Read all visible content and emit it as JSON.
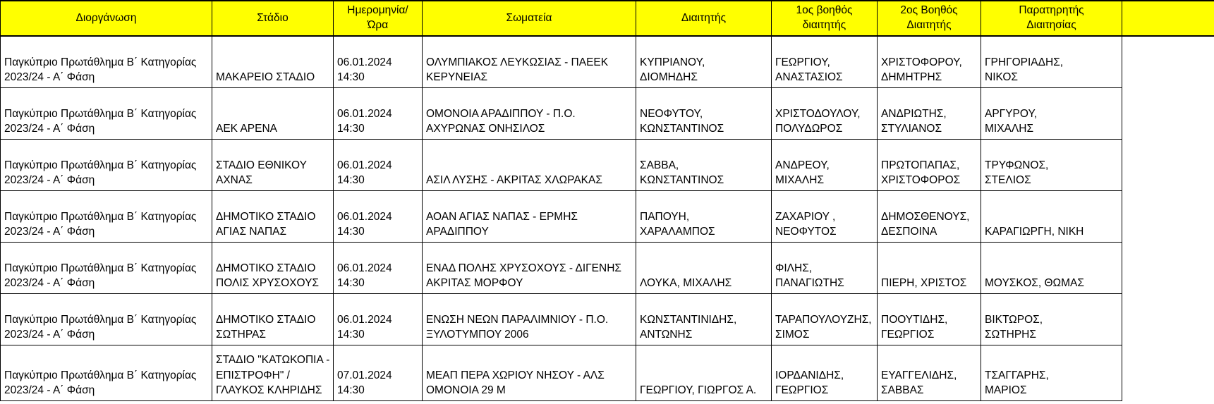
{
  "colors": {
    "header_bg": "#FFFF00",
    "border": "#000000",
    "text": "#000000",
    "page_bg": "#FFFFFF"
  },
  "table": {
    "columns": [
      {
        "key": "competition",
        "label": "Διοργάνωση"
      },
      {
        "key": "stadium",
        "label": "Στάδιο"
      },
      {
        "key": "datetime",
        "label": "Ημερομηνία/\nΏρα"
      },
      {
        "key": "teams",
        "label": "Σωματεία"
      },
      {
        "key": "referee",
        "label": "Διαιτητής"
      },
      {
        "key": "assistant1",
        "label": "1ος βοηθός\nδιαιτητής"
      },
      {
        "key": "assistant2",
        "label": "2ος Βοηθός\nΔιαιτητής"
      },
      {
        "key": "observer",
        "label": "Παρατηρητής\nΔιαιτησίας"
      }
    ],
    "rows": [
      {
        "competition": "Παγκύπριο Πρωτάθλημα Β΄ Κατηγορίας\n2023/24 - Α΄ Φάση",
        "stadium": "ΜΑΚΑΡΕΙΟ ΣΤΑΔΙΟ",
        "datetime": "06.01.2024\n14:30",
        "teams": "ΟΛΥΜΠΙΑΚΟΣ ΛΕΥΚΩΣΙΑΣ - ΠΑΕΕΚ\nΚΕΡΥΝΕΙΑΣ",
        "referee": "ΚΥΠΡΙΑΝΟΥ,\nΔΙΟΜΗΔΗΣ",
        "assistant1": "ΓΕΩΡΓΙΟΥ,\nΑΝΑΣΤΑΣΙΟΣ",
        "assistant2": "ΧΡΙΣΤΟΦΟΡΟΥ,\nΔΗΜΗΤΡΗΣ",
        "observer": "ΓΡΗΓΟΡΙΑΔΗΣ,\nΝΙΚΟΣ"
      },
      {
        "competition": "Παγκύπριο Πρωτάθλημα Β΄ Κατηγορίας\n2023/24 - Α΄ Φάση",
        "stadium": "ΑΕΚ ΑΡΕΝΑ",
        "datetime": "06.01.2024\n14:30",
        "teams": "ΟΜΟΝΟΙΑ ΑΡΑΔΙΠΠΟΥ - Π.Ο.\nΑΧΥΡΩΝΑΣ ΟΝΗΣΙΛΟΣ",
        "referee": "ΝΕΟΦΥΤΟΥ,\nΚΩΝΣΤΑΝΤΙΝΟΣ",
        "assistant1": "ΧΡΙΣΤΟΔΟΥΛΟΥ,\nΠΟΛΥΔΩΡΟΣ",
        "assistant2": "ΑΝΔΡΙΩΤΗΣ,\nΣΤΥΛΙΑΝΟΣ",
        "observer": "ΑΡΓΥΡΟΥ,\nΜΙΧΑΛΗΣ"
      },
      {
        "competition": "Παγκύπριο Πρωτάθλημα Β΄ Κατηγορίας\n2023/24 - Α΄ Φάση",
        "stadium": "ΣΤΑΔΙΟ ΕΘΝΙΚΟΥ\nΑΧΝΑΣ",
        "datetime": "06.01.2024\n14:30",
        "teams": "ΑΣΙΛ ΛΥΣΗΣ - ΑΚΡΙΤΑΣ ΧΛΩΡΑΚΑΣ",
        "referee": "ΣΑΒΒΑ,\nΚΩΝΣΤΑΝΤΙΝΟΣ",
        "assistant1": "ΑΝΔΡΕΟΥ,\nΜΙΧΑΛΗΣ",
        "assistant2": "ΠΡΩΤΟΠΑΠΑΣ,\nΧΡΙΣΤΟΦΟΡΟΣ",
        "observer": "ΤΡΥΦΩΝΟΣ,\nΣΤΕΛΙΟΣ"
      },
      {
        "competition": "Παγκύπριο Πρωτάθλημα Β΄ Κατηγορίας\n2023/24 - Α΄ Φάση",
        "stadium": "ΔΗΜΟΤΙΚΟ ΣΤΑΔΙΟ\nΑΓΙΑΣ ΝΑΠΑΣ",
        "datetime": "06.01.2024\n14:30",
        "teams": "ΑΟΑΝ ΑΓΙΑΣ ΝΑΠΑΣ - ΕΡΜΗΣ\nΑΡΑΔΙΠΠΟΥ",
        "referee": "ΠΑΠΟΥΗ,\nΧΑΡΑΛΑΜΠΟΣ",
        "assistant1": "ΖΑΧΑΡΙΟΥ ,\nΝΕΟΦΥΤΟΣ",
        "assistant2": "ΔΗΜΟΣΘΕΝΟΥΣ,\nΔΕΣΠΟΙΝΑ",
        "observer": "ΚΑΡΑΓΙΩΡΓΗ, ΝΙΚΗ"
      },
      {
        "competition": "Παγκύπριο Πρωτάθλημα Β΄ Κατηγορίας\n2023/24 - Α΄ Φάση",
        "stadium": "ΔΗΜΟΤΙΚΟ ΣΤΑΔΙΟ\nΠΟΛΙΣ ΧΡΥΣΟΧΟΥΣ",
        "datetime": "06.01.2024\n14:30",
        "teams": "ΕΝΑΔ ΠΟΛΗΣ ΧΡΥΣΟΧΟΥΣ - ΔΙΓΕΝΗΣ\nΑΚΡΙΤΑΣ ΜΟΡΦΟΥ",
        "referee": "ΛΟΥΚΑ, ΜΙΧΑΛΗΣ",
        "assistant1": "ΦΙΛΗΣ,\nΠΑΝΑΓΙΩΤΗΣ",
        "assistant2": "ΠΙΕΡΗ, ΧΡΙΣΤΟΣ",
        "observer": "ΜΟΥΣΚΟΣ, ΘΩΜΑΣ"
      },
      {
        "competition": "Παγκύπριο Πρωτάθλημα Β΄ Κατηγορίας\n2023/24 - Α΄ Φάση",
        "stadium": "ΔΗΜΟΤΙΚΟ ΣΤΑΔΙΟ\nΣΩΤΗΡΑΣ",
        "datetime": "06.01.2024\n14:30",
        "teams": "ΕΝΩΣΗ ΝΕΩΝ ΠΑΡΑΛΙΜΝΙΟΥ - Π.Ο.\nΞΥΛΟΤΥΜΠΟΥ 2006",
        "referee": "ΚΩΝΣΤΑΝΤΙΝΙΔΗΣ,\nΑΝΤΩΝΗΣ",
        "assistant1": "ΤΑΡΑΠΟΥΛΟΥΖΗΣ,\nΣΙΜΟΣ",
        "assistant2": "ΠΟΟΥΤΙΔΗΣ,\nΓΕΩΡΓΙΟΣ",
        "observer": "ΒΙΚΤΩΡΟΣ,\nΣΩΤΗΡΗΣ"
      },
      {
        "competition": "Παγκύπριο Πρωτάθλημα Β΄ Κατηγορίας\n2023/24 - Α΄ Φάση",
        "stadium": "ΣΤΑΔΙΟ \"ΚΑΤΩΚΟΠΙΑ -\nΕΠΙΣΤΡΟΦΗ\" /\nΓΛΑΥΚΟΣ ΚΛΗΡΙΔΗΣ",
        "datetime": "07.01.2024\n14:30",
        "teams": "ΜΕΑΠ ΠΕΡΑ ΧΩΡΙΟΥ ΝΗΣΟΥ - ΑΛΣ\nΟΜΟΝΟΙΑ 29 Μ",
        "referee": "ΓΕΩΡΓΙΟΥ, ΓΙΩΡΓΟΣ Α.",
        "assistant1": "ΙΟΡΔΑΝΙΔΗΣ,\nΓΕΩΡΓΙΟΣ",
        "assistant2": "ΕΥΑΓΓΕΛΙΔΗΣ,\nΣΑΒΒΑΣ",
        "observer": "ΤΣΑΓΓΑΡΗΣ,\nΜΑΡΙΟΣ"
      }
    ]
  }
}
